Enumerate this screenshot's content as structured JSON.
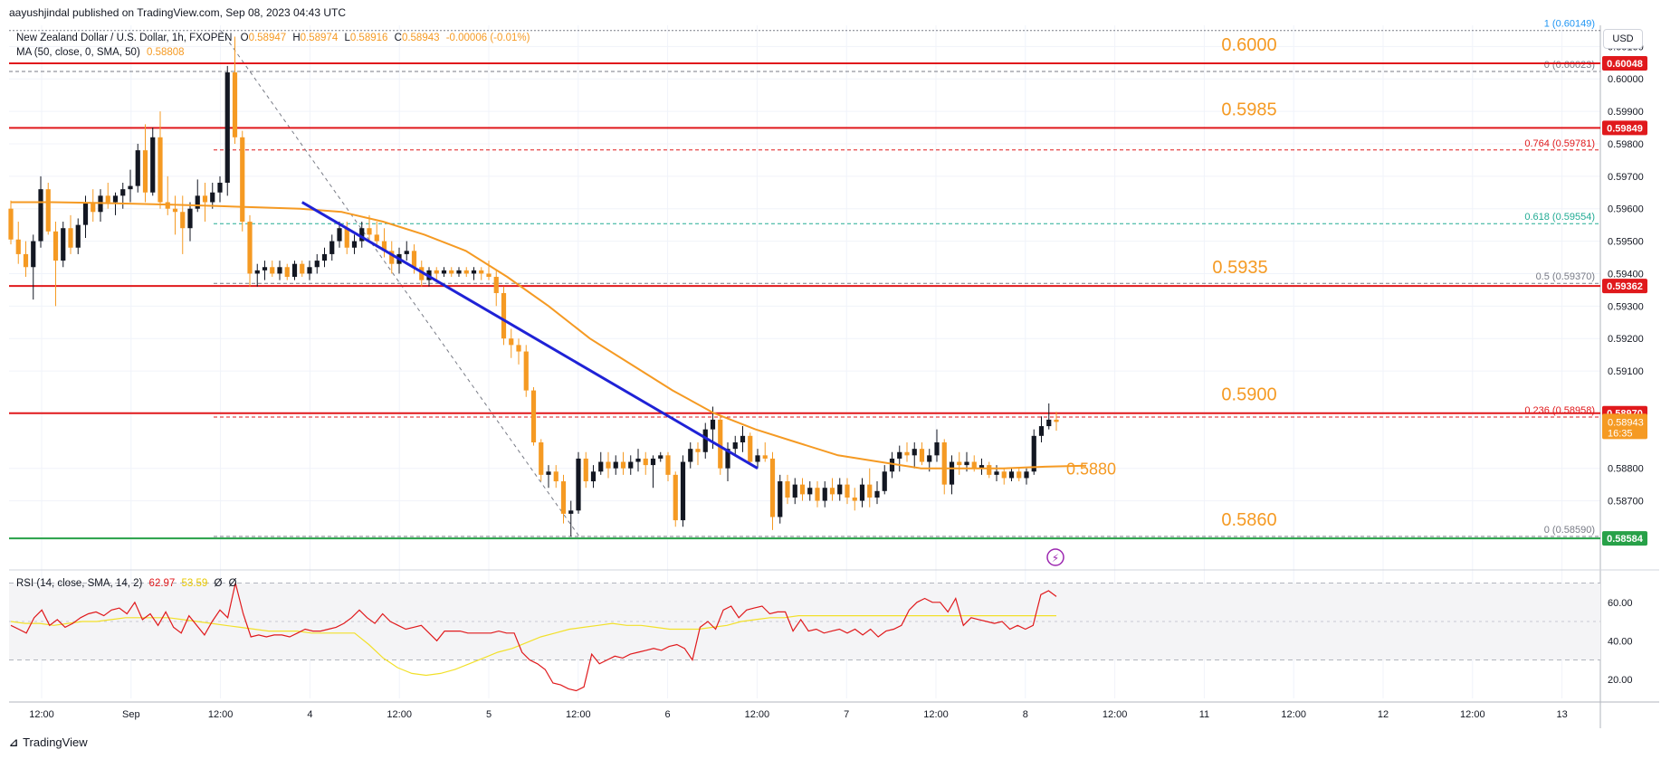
{
  "header": {
    "published": "aayushjindal published on TradingView.com, Sep 08, 2023 04:43 UTC",
    "symbol": "New Zealand Dollar / U.S. Dollar, 1h, FXOPEN",
    "ohlc": {
      "o_label": "O",
      "o": "0.58947",
      "h_label": "H",
      "h": "0.58974",
      "l_label": "L",
      "l": "0.58916",
      "c_label": "C",
      "c": "0.58943",
      "chg": "-0.00006 (-0.01%)"
    },
    "ma_label": "MA (50, close, 0, SMA, 50)",
    "ma_value": "0.58808"
  },
  "rsi_legend": {
    "label": "RSI (14, close, SMA, 14, 2)",
    "rsi": "62.97",
    "sma": "53.59",
    "z1": "Ø",
    "z2": "Ø"
  },
  "currency_button": "USD",
  "brand": "TradingView",
  "colors": {
    "up": "#131722",
    "down": "#f59a23",
    "ma": "#f59a23",
    "trend": "#1f22d6",
    "level": "#e0191c",
    "support": "#27a148",
    "fib": "#787b86",
    "fib618": "#22ab94",
    "rsi": "#e0191c",
    "rsi_ma": "#f2e02a"
  },
  "chart_data": {
    "type": "candlestick",
    "timeframe": "1h",
    "y_axis": {
      "range": [
        0.58565,
        0.60165
      ],
      "tick_labels": [
        "0.60100",
        "0.60000",
        "0.59900",
        "0.59800",
        "0.59700",
        "0.59600",
        "0.59500",
        "0.59400",
        "0.59300",
        "0.59200",
        "0.59100",
        "0.58800",
        "0.58700"
      ],
      "tick_values": [
        0.601,
        0.6,
        0.599,
        0.598,
        0.597,
        0.596,
        0.595,
        0.594,
        0.593,
        0.592,
        0.591,
        0.588,
        0.587
      ]
    },
    "x_axis": {
      "labels": [
        "12:00",
        "Sep",
        "12:00",
        "4",
        "12:00",
        "5",
        "12:00",
        "6",
        "12:00",
        "7",
        "12:00",
        "8",
        "12:00",
        "11",
        "12:00",
        "12",
        "12:00",
        "13"
      ]
    },
    "candles_ohlc": [
      [
        0.596,
        0.59625,
        0.5949,
        0.59505
      ],
      [
        0.59505,
        0.5956,
        0.5943,
        0.5946
      ],
      [
        0.5946,
        0.595,
        0.5939,
        0.5942
      ],
      [
        0.5942,
        0.5952,
        0.5932,
        0.595
      ],
      [
        0.595,
        0.597,
        0.5948,
        0.5966
      ],
      [
        0.5966,
        0.5968,
        0.5952,
        0.5953
      ],
      [
        0.5953,
        0.5956,
        0.593,
        0.5944
      ],
      [
        0.5944,
        0.5956,
        0.5942,
        0.5954
      ],
      [
        0.5954,
        0.5958,
        0.5946,
        0.5948
      ],
      [
        0.5948,
        0.5957,
        0.5946,
        0.5955
      ],
      [
        0.5955,
        0.5964,
        0.5951,
        0.5962
      ],
      [
        0.5962,
        0.5966,
        0.5956,
        0.5959
      ],
      [
        0.5959,
        0.5966,
        0.5956,
        0.5964
      ],
      [
        0.5964,
        0.5968,
        0.596,
        0.5962
      ],
      [
        0.5962,
        0.5965,
        0.5958,
        0.5964
      ],
      [
        0.5964,
        0.5968,
        0.596,
        0.5966
      ],
      [
        0.5966,
        0.5972,
        0.5962,
        0.5967
      ],
      [
        0.5967,
        0.598,
        0.5965,
        0.5978
      ],
      [
        0.5978,
        0.5986,
        0.5962,
        0.5965
      ],
      [
        0.5965,
        0.5985,
        0.5964,
        0.5982
      ],
      [
        0.5982,
        0.599,
        0.596,
        0.5962
      ],
      [
        0.5962,
        0.597,
        0.5958,
        0.596
      ],
      [
        0.596,
        0.5964,
        0.5952,
        0.5959
      ],
      [
        0.5959,
        0.5964,
        0.5946,
        0.5954
      ],
      [
        0.5954,
        0.5962,
        0.595,
        0.596
      ],
      [
        0.596,
        0.5969,
        0.5959,
        0.5964
      ],
      [
        0.5964,
        0.5968,
        0.5956,
        0.5962
      ],
      [
        0.5962,
        0.5968,
        0.596,
        0.5965
      ],
      [
        0.5965,
        0.597,
        0.5962,
        0.5968
      ],
      [
        0.5968,
        0.6004,
        0.5964,
        0.6002
      ],
      [
        0.6002,
        0.6013,
        0.598,
        0.5982
      ],
      [
        0.5982,
        0.5984,
        0.5953,
        0.5956
      ],
      [
        0.5956,
        0.5958,
        0.5936,
        0.594
      ],
      [
        0.594,
        0.5943,
        0.5936,
        0.5941
      ],
      [
        0.5941,
        0.5944,
        0.5938,
        0.5942
      ],
      [
        0.5942,
        0.5944,
        0.5939,
        0.594
      ],
      [
        0.594,
        0.5944,
        0.5938,
        0.5942
      ],
      [
        0.5942,
        0.5943,
        0.5938,
        0.5939
      ],
      [
        0.5939,
        0.5944,
        0.5938,
        0.5943
      ],
      [
        0.5943,
        0.5944,
        0.5939,
        0.594
      ],
      [
        0.594,
        0.5944,
        0.5938,
        0.5942
      ],
      [
        0.5942,
        0.5946,
        0.594,
        0.5944
      ],
      [
        0.5944,
        0.5948,
        0.5942,
        0.5946
      ],
      [
        0.5946,
        0.5952,
        0.5944,
        0.595
      ],
      [
        0.595,
        0.5956,
        0.5948,
        0.5954
      ],
      [
        0.5954,
        0.5956,
        0.5946,
        0.5948
      ],
      [
        0.5948,
        0.5952,
        0.5946,
        0.595
      ],
      [
        0.595,
        0.5956,
        0.5948,
        0.5954
      ],
      [
        0.5954,
        0.5958,
        0.595,
        0.5952
      ],
      [
        0.5952,
        0.5956,
        0.5948,
        0.595
      ],
      [
        0.595,
        0.5954,
        0.5945,
        0.5947
      ],
      [
        0.5947,
        0.595,
        0.594,
        0.5943
      ],
      [
        0.5943,
        0.5948,
        0.594,
        0.5946
      ],
      [
        0.5946,
        0.595,
        0.5944,
        0.5947
      ],
      [
        0.5947,
        0.5949,
        0.594,
        0.5942
      ],
      [
        0.5942,
        0.5944,
        0.5936,
        0.5938
      ],
      [
        0.5938,
        0.5942,
        0.5936,
        0.5941
      ],
      [
        0.5941,
        0.5942,
        0.5938,
        0.594
      ],
      [
        0.594,
        0.5942,
        0.5939,
        0.5941
      ],
      [
        0.5941,
        0.5942,
        0.5939,
        0.594
      ],
      [
        0.594,
        0.5942,
        0.5939,
        0.5941
      ],
      [
        0.5941,
        0.5942,
        0.5939,
        0.594
      ],
      [
        0.594,
        0.5942,
        0.5938,
        0.5941
      ],
      [
        0.5941,
        0.5942,
        0.5938,
        0.594
      ],
      [
        0.594,
        0.5944,
        0.5938,
        0.5939
      ],
      [
        0.5939,
        0.5941,
        0.593,
        0.5934
      ],
      [
        0.5934,
        0.5936,
        0.5918,
        0.592
      ],
      [
        0.592,
        0.5923,
        0.5914,
        0.5918
      ],
      [
        0.5918,
        0.592,
        0.5912,
        0.5916
      ],
      [
        0.5916,
        0.5918,
        0.5902,
        0.5904
      ],
      [
        0.5904,
        0.5905,
        0.5887,
        0.5888
      ],
      [
        0.5888,
        0.5889,
        0.5876,
        0.5878
      ],
      [
        0.5878,
        0.5881,
        0.5874,
        0.5879
      ],
      [
        0.5879,
        0.5881,
        0.5874,
        0.5876
      ],
      [
        0.5876,
        0.5878,
        0.5863,
        0.5866
      ],
      [
        0.5866,
        0.587,
        0.5859,
        0.5867
      ],
      [
        0.5867,
        0.5885,
        0.5866,
        0.5883
      ],
      [
        0.5883,
        0.5885,
        0.5874,
        0.5876
      ],
      [
        0.5876,
        0.5881,
        0.5874,
        0.5879
      ],
      [
        0.5879,
        0.5885,
        0.5878,
        0.5882
      ],
      [
        0.5882,
        0.5885,
        0.5877,
        0.588
      ],
      [
        0.588,
        0.5884,
        0.5878,
        0.5882
      ],
      [
        0.5882,
        0.5885,
        0.5878,
        0.588
      ],
      [
        0.588,
        0.5884,
        0.5878,
        0.5882
      ],
      [
        0.5882,
        0.5886,
        0.5879,
        0.5883
      ],
      [
        0.5883,
        0.5885,
        0.5878,
        0.5881
      ],
      [
        0.5881,
        0.5884,
        0.5874,
        0.5883
      ],
      [
        0.5883,
        0.5885,
        0.5882,
        0.5884
      ],
      [
        0.5884,
        0.5885,
        0.5876,
        0.5878
      ],
      [
        0.5878,
        0.5879,
        0.5862,
        0.5864
      ],
      [
        0.5864,
        0.5884,
        0.5862,
        0.5882
      ],
      [
        0.5882,
        0.5888,
        0.588,
        0.5886
      ],
      [
        0.5886,
        0.5888,
        0.5881,
        0.5885
      ],
      [
        0.5885,
        0.5894,
        0.5883,
        0.5892
      ],
      [
        0.5892,
        0.5899,
        0.5886,
        0.5895
      ],
      [
        0.5895,
        0.5896,
        0.5878,
        0.588
      ],
      [
        0.588,
        0.5888,
        0.5876,
        0.5886
      ],
      [
        0.5886,
        0.589,
        0.5884,
        0.5888
      ],
      [
        0.5888,
        0.5893,
        0.5885,
        0.589
      ],
      [
        0.589,
        0.5891,
        0.5881,
        0.5882
      ],
      [
        0.5882,
        0.5886,
        0.588,
        0.5884
      ],
      [
        0.5884,
        0.5888,
        0.5882,
        0.5883
      ],
      [
        0.5883,
        0.5885,
        0.5861,
        0.5865
      ],
      [
        0.5865,
        0.5878,
        0.5863,
        0.5876
      ],
      [
        0.5876,
        0.5878,
        0.5869,
        0.5871
      ],
      [
        0.5871,
        0.5877,
        0.5869,
        0.5875
      ],
      [
        0.5875,
        0.5877,
        0.587,
        0.5872
      ],
      [
        0.5872,
        0.5876,
        0.587,
        0.5874
      ],
      [
        0.5874,
        0.5876,
        0.5868,
        0.587
      ],
      [
        0.587,
        0.5876,
        0.5868,
        0.5874
      ],
      [
        0.5874,
        0.5877,
        0.587,
        0.5872
      ],
      [
        0.5872,
        0.5877,
        0.587,
        0.5875
      ],
      [
        0.5875,
        0.5877,
        0.5869,
        0.5871
      ],
      [
        0.5871,
        0.5874,
        0.5867,
        0.587
      ],
      [
        0.587,
        0.5877,
        0.5868,
        0.5875
      ],
      [
        0.5875,
        0.588,
        0.5868,
        0.5871
      ],
      [
        0.5871,
        0.5876,
        0.5869,
        0.5873
      ],
      [
        0.5873,
        0.5881,
        0.5872,
        0.5879
      ],
      [
        0.5879,
        0.5885,
        0.5877,
        0.5883
      ],
      [
        0.5883,
        0.5887,
        0.5879,
        0.5885
      ],
      [
        0.5885,
        0.5888,
        0.5882,
        0.5884
      ],
      [
        0.5884,
        0.5888,
        0.588,
        0.5886
      ],
      [
        0.5886,
        0.5888,
        0.5881,
        0.5882
      ],
      [
        0.5882,
        0.5886,
        0.5879,
        0.5884
      ],
      [
        0.5884,
        0.5892,
        0.5882,
        0.5888
      ],
      [
        0.5888,
        0.5889,
        0.5872,
        0.5875
      ],
      [
        0.5875,
        0.5884,
        0.5872,
        0.5882
      ],
      [
        0.5882,
        0.5885,
        0.5878,
        0.5881
      ],
      [
        0.5881,
        0.5885,
        0.5879,
        0.5882
      ],
      [
        0.5882,
        0.5884,
        0.5879,
        0.588
      ],
      [
        0.588,
        0.5883,
        0.5878,
        0.5881
      ],
      [
        0.5881,
        0.5882,
        0.5877,
        0.5878
      ],
      [
        0.5878,
        0.5881,
        0.5876,
        0.5879
      ],
      [
        0.5879,
        0.588,
        0.5875,
        0.5877
      ],
      [
        0.5877,
        0.588,
        0.5876,
        0.5879
      ],
      [
        0.5879,
        0.588,
        0.5876,
        0.5877
      ],
      [
        0.5877,
        0.588,
        0.5875,
        0.5879
      ],
      [
        0.5879,
        0.5892,
        0.5878,
        0.589
      ],
      [
        0.589,
        0.5896,
        0.5888,
        0.5893
      ],
      [
        0.5893,
        0.59,
        0.5892,
        0.5895
      ],
      [
        0.5895,
        0.58974,
        0.58916,
        0.58943
      ]
    ],
    "ma50": [
      0.5962,
      0.5962,
      0.59618,
      0.59615,
      0.59612,
      0.59608,
      0.59604,
      0.596,
      0.5959,
      0.5956,
      0.5952,
      0.5947,
      0.5939,
      0.593,
      0.592,
      0.5912,
      0.5904,
      0.5897,
      0.5892,
      0.5888,
      0.5884,
      0.5882,
      0.588,
      0.588,
      0.588,
      0.58805,
      0.58808
    ],
    "trendline": [
      [
        0.5962
      ],
      [
        0.588
      ]
    ],
    "levels": [
      {
        "label": "0.6000",
        "price": 0.60048,
        "tag": "0.60048"
      },
      {
        "label": "0.5985",
        "price": 0.59849,
        "tag": "0.59849"
      },
      {
        "label": "0.5935",
        "price": 0.59362,
        "tag": "0.59362"
      },
      {
        "label": "0.5900",
        "price": 0.5897,
        "tag": "0.58970"
      },
      {
        "label": "0.5860",
        "price": 0.58584,
        "tag": "0.58584"
      }
    ],
    "ma_annotation": "0.5880",
    "price_tag": {
      "price": "0.58943",
      "countdown": "16:35"
    },
    "fib": [
      {
        "label": "1 (0.60149)",
        "price": 0.60149
      },
      {
        "label": "0 (0.60023)",
        "price": 0.60023
      },
      {
        "label": "0.764 (0.59781)",
        "price": 0.59781
      },
      {
        "label": "0.618 (0.59554)",
        "price": 0.59554
      },
      {
        "label": "0.5 (0.59370)",
        "price": 0.5937
      },
      {
        "label": "0.236 (0.58958)",
        "price": 0.58958
      },
      {
        "label": "0 (0.58590)",
        "price": 0.5859
      }
    ],
    "rsi": {
      "y_axis": {
        "range": [
          10,
          74
        ],
        "tick_labels": [
          "60.00",
          "40.00",
          "20.00"
        ],
        "tick_values": [
          60,
          40,
          20
        ],
        "bands": [
          70,
          30
        ],
        "mid": 50
      },
      "values": [
        48,
        46,
        44,
        52,
        56,
        48,
        51,
        47,
        49,
        52,
        54,
        55,
        53,
        56,
        57,
        54,
        60,
        51,
        54,
        48,
        55,
        47,
        44,
        53,
        48,
        43,
        50,
        56,
        52,
        70,
        54,
        42,
        43,
        42,
        43,
        43,
        42,
        44,
        46,
        45,
        45,
        46,
        47,
        49,
        52,
        56,
        52,
        49,
        54,
        50,
        48,
        46,
        47,
        48,
        44,
        40,
        45,
        45,
        45,
        44,
        44,
        44,
        44,
        45,
        44,
        44,
        34,
        30,
        28,
        25,
        18,
        17,
        15,
        14,
        16,
        33,
        28,
        30,
        32,
        31,
        33,
        34,
        35,
        36,
        35,
        37,
        38,
        36,
        30,
        47,
        50,
        46,
        56,
        58,
        52,
        56,
        57,
        58,
        54,
        55,
        55,
        45,
        51,
        45,
        46,
        44,
        45,
        46,
        44,
        46,
        43,
        46,
        42,
        45,
        46,
        48,
        56,
        60,
        62,
        60,
        60,
        55,
        62,
        48,
        52,
        51,
        50,
        49,
        50,
        46,
        48,
        46,
        48,
        64,
        66,
        63
      ],
      "sma": [
        50,
        49,
        49,
        48,
        49,
        50,
        50,
        51,
        52,
        52,
        52,
        52,
        51,
        50,
        49,
        48,
        47,
        46,
        45,
        45,
        45,
        44,
        44,
        44,
        44,
        38,
        31,
        26,
        23,
        22,
        23,
        25,
        28,
        31,
        34,
        36,
        39,
        42,
        44,
        46,
        47,
        48,
        49,
        48,
        48,
        47,
        46,
        46,
        46,
        47,
        48,
        50,
        51,
        52,
        52,
        53,
        53,
        53,
        53,
        53,
        53,
        53,
        53,
        53,
        53,
        53,
        53,
        53,
        53,
        53,
        53,
        53,
        53,
        53
      ]
    }
  }
}
